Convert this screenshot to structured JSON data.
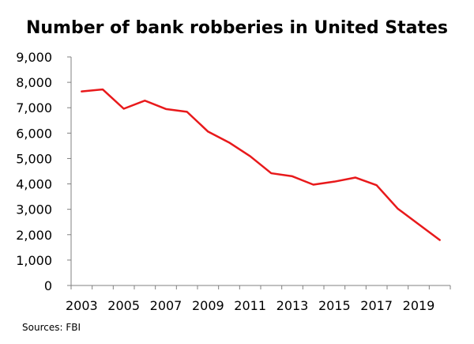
{
  "chart_data": {
    "type": "line",
    "title": "Number of bank robberies in United States",
    "xlabel": "",
    "ylabel": "",
    "source": "Sources: FBI",
    "x": [
      2003,
      2004,
      2005,
      2006,
      2007,
      2008,
      2009,
      2010,
      2011,
      2012,
      2013,
      2014,
      2015,
      2016,
      2017,
      2018,
      2019,
      2020
    ],
    "series": [
      {
        "name": "Bank robberies",
        "color": "#e8191b",
        "values": [
          7640,
          7720,
          6960,
          7280,
          6950,
          6840,
          6060,
          5630,
          5090,
          4420,
          4300,
          3970,
          4090,
          4250,
          3950,
          3030,
          2410,
          1790
        ]
      }
    ],
    "xticks": [
      "2003",
      "2005",
      "2007",
      "2009",
      "2011",
      "2013",
      "2015",
      "2017",
      "2019"
    ],
    "yticks": [
      "0",
      "1,000",
      "2,000",
      "3,000",
      "4,000",
      "5,000",
      "6,000",
      "7,000",
      "8,000",
      "9,000"
    ],
    "ylim": [
      0,
      9000
    ],
    "grid": false,
    "legend": "none"
  }
}
